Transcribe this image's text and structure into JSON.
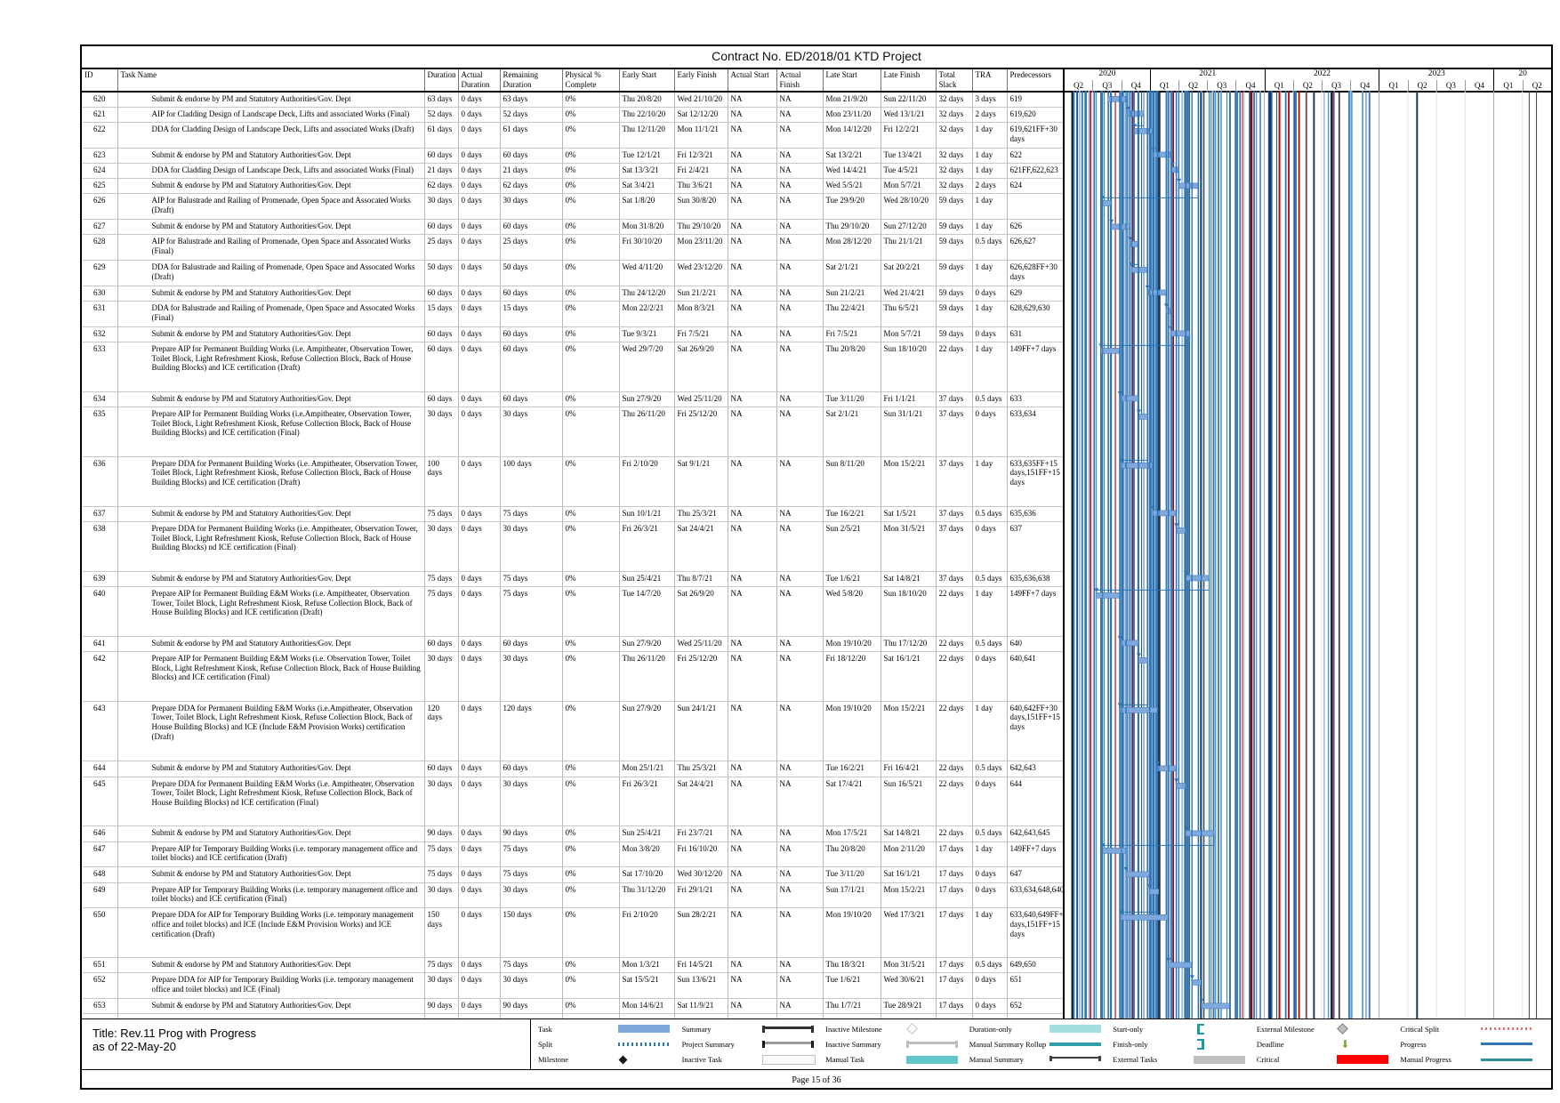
{
  "title": "Contract No. ED/2018/01 KTD Project",
  "footer": {
    "page_label": "Page 15 of 36"
  },
  "title_block": {
    "line1": "Title: Rev.11 Prog with Progress",
    "line2": "as of 22-May-20"
  },
  "columns": [
    "ID",
    "Task Name",
    "Duration",
    "Actual Duration",
    "Remaining Duration",
    "Physical % Complete",
    "Early Start",
    "Early Finish",
    "Actual Start",
    "Actual Finish",
    "Late Start",
    "Late Finish",
    "Total Slack",
    "TRA",
    "Predecessors"
  ],
  "timeline": {
    "start_quarter": "2020 Q2",
    "years": [
      {
        "label": "2020",
        "quarters": [
          "Q2",
          "Q3",
          "Q4"
        ]
      },
      {
        "label": "2021",
        "quarters": [
          "Q1",
          "Q2",
          "Q3",
          "Q4"
        ]
      },
      {
        "label": "2022",
        "quarters": [
          "Q1",
          "Q2",
          "Q3",
          "Q4"
        ]
      },
      {
        "label": "2023",
        "quarters": [
          "Q1",
          "Q2",
          "Q3",
          "Q4"
        ]
      },
      {
        "label": "20",
        "quarters": [
          "Q1",
          "Q2"
        ]
      }
    ]
  },
  "colors": {
    "task_bar": "#7FA8DC",
    "link_line": "#2E75B6",
    "critical": "#FF0000",
    "manual_task": "#63C6CB",
    "external": "#C0C0C0",
    "deadline_green": "#6FAE3E"
  },
  "tasks": [
    {
      "id": "620",
      "name": "Submit & endorse by PM and Statutory Authorities/Gov. Dept",
      "dur": "63 days",
      "adur": "0 days",
      "rdur": "63 days",
      "pct": "0%",
      "es": "Thu 20/8/20",
      "ef": "Wed 21/10/20",
      "as": "NA",
      "af": "NA",
      "ls": "Mon 21/9/20",
      "lf": "Sun 22/11/20",
      "slack": "32 days",
      "tra": "3 days",
      "pred": "619"
    },
    {
      "id": "621",
      "name": "AIP for Cladding Design of Landscape Deck, Lifts and associated Works (Final)",
      "dur": "52 days",
      "adur": "0 days",
      "rdur": "52 days",
      "pct": "0%",
      "es": "Thu 22/10/20",
      "ef": "Sat 12/12/20",
      "as": "NA",
      "af": "NA",
      "ls": "Mon 23/11/20",
      "lf": "Wed 13/1/21",
      "slack": "32 days",
      "tra": "2 days",
      "pred": "619,620"
    },
    {
      "id": "622",
      "name": "DDA for Cladding Design of Landscape Deck, Lifts and associated Works (Draft)",
      "dur": "61 days",
      "adur": "0 days",
      "rdur": "61 days",
      "pct": "0%",
      "es": "Thu 12/11/20",
      "ef": "Mon 11/1/21",
      "as": "NA",
      "af": "NA",
      "ls": "Mon 14/12/20",
      "lf": "Fri 12/2/21",
      "slack": "32 days",
      "tra": "1 day",
      "pred": "619,621FF+30 days"
    },
    {
      "id": "623",
      "name": "Submit & endorse by PM and Statutory Authorities/Gov. Dept",
      "dur": "60 days",
      "adur": "0 days",
      "rdur": "60 days",
      "pct": "0%",
      "es": "Tue 12/1/21",
      "ef": "Fri 12/3/21",
      "as": "NA",
      "af": "NA",
      "ls": "Sat 13/2/21",
      "lf": "Tue 13/4/21",
      "slack": "32 days",
      "tra": "1 day",
      "pred": "622"
    },
    {
      "id": "624",
      "name": "DDA for Cladding Design of Landscape Deck, Lifts and associated Works (Final)",
      "dur": "21 days",
      "adur": "0 days",
      "rdur": "21 days",
      "pct": "0%",
      "es": "Sat 13/3/21",
      "ef": "Fri 2/4/21",
      "as": "NA",
      "af": "NA",
      "ls": "Wed 14/4/21",
      "lf": "Tue 4/5/21",
      "slack": "32 days",
      "tra": "1 day",
      "pred": "621FF,622,623"
    },
    {
      "id": "625",
      "name": "Submit & endorse by PM and Statutory Authorities/Gov. Dept",
      "dur": "62 days",
      "adur": "0 days",
      "rdur": "62 days",
      "pct": "0%",
      "es": "Sat 3/4/21",
      "ef": "Thu 3/6/21",
      "as": "NA",
      "af": "NA",
      "ls": "Wed 5/5/21",
      "lf": "Mon 5/7/21",
      "slack": "32 days",
      "tra": "2 days",
      "pred": "624"
    },
    {
      "id": "626",
      "name": "AIP for Balustrade and Railing of Promenade, Open Space and Assocated Works (Draft)",
      "dur": "30 days",
      "adur": "0 days",
      "rdur": "30 days",
      "pct": "0%",
      "es": "Sat 1/8/20",
      "ef": "Sun 30/8/20",
      "as": "NA",
      "af": "NA",
      "ls": "Tue 29/9/20",
      "lf": "Wed 28/10/20",
      "slack": "59 days",
      "tra": "1 day",
      "pred": ""
    },
    {
      "id": "627",
      "name": "Submit & endorse by PM and Statutory Authorities/Gov. Dept",
      "dur": "60 days",
      "adur": "0 days",
      "rdur": "60 days",
      "pct": "0%",
      "es": "Mon 31/8/20",
      "ef": "Thu 29/10/20",
      "as": "NA",
      "af": "NA",
      "ls": "Thu 29/10/20",
      "lf": "Sun 27/12/20",
      "slack": "59 days",
      "tra": "1 day",
      "pred": "626"
    },
    {
      "id": "628",
      "name": "AIP for Balustrade and Railing of Promenade, Open Space and Assocated Works (Final)",
      "dur": "25 days",
      "adur": "0 days",
      "rdur": "25 days",
      "pct": "0%",
      "es": "Fri 30/10/20",
      "ef": "Mon 23/11/20",
      "as": "NA",
      "af": "NA",
      "ls": "Mon 28/12/20",
      "lf": "Thu 21/1/21",
      "slack": "59 days",
      "tra": "0.5 days",
      "pred": "626,627"
    },
    {
      "id": "629",
      "name": "DDA for Balustrade and Railing of Promenade, Open Space and Assocated Works (Draft)",
      "dur": "50 days",
      "adur": "0 days",
      "rdur": "50 days",
      "pct": "0%",
      "es": "Wed 4/11/20",
      "ef": "Wed 23/12/20",
      "as": "NA",
      "af": "NA",
      "ls": "Sat 2/1/21",
      "lf": "Sat 20/2/21",
      "slack": "59 days",
      "tra": "1 day",
      "pred": "626,628FF+30 days"
    },
    {
      "id": "630",
      "name": "Submit & endorse by PM and Statutory Authorities/Gov. Dept",
      "dur": "60 days",
      "adur": "0 days",
      "rdur": "60 days",
      "pct": "0%",
      "es": "Thu 24/12/20",
      "ef": "Sun 21/2/21",
      "as": "NA",
      "af": "NA",
      "ls": "Sun 21/2/21",
      "lf": "Wed 21/4/21",
      "slack": "59 days",
      "tra": "0 days",
      "pred": "629"
    },
    {
      "id": "631",
      "name": "DDA for Balustrade and Railing of Promenade, Open Space and Assocated Works (Final)",
      "dur": "15 days",
      "adur": "0 days",
      "rdur": "15 days",
      "pct": "0%",
      "es": "Mon 22/2/21",
      "ef": "Mon 8/3/21",
      "as": "NA",
      "af": "NA",
      "ls": "Thu 22/4/21",
      "lf": "Thu 6/5/21",
      "slack": "59 days",
      "tra": "1 day",
      "pred": "628,629,630"
    },
    {
      "id": "632",
      "name": "Submit & endorse by PM and Statutory Authorities/Gov. Dept",
      "dur": "60 days",
      "adur": "0 days",
      "rdur": "60 days",
      "pct": "0%",
      "es": "Tue 9/3/21",
      "ef": "Fri 7/5/21",
      "as": "NA",
      "af": "NA",
      "ls": "Fri 7/5/21",
      "lf": "Mon 5/7/21",
      "slack": "59 days",
      "tra": "0 days",
      "pred": "631"
    },
    {
      "id": "633",
      "name": "Prepare AIP for Permanent Building Works (i.e. Ampitheater, Observation Tower, Toilet Block, Light Refreshment Kiosk,  Refuse Collection Block, Back of House Building Blocks) and ICE certification (Draft)",
      "dur": "60 days",
      "adur": "0 days",
      "rdur": "60 days",
      "pct": "0%",
      "es": "Wed 29/7/20",
      "ef": "Sat 26/9/20",
      "as": "NA",
      "af": "NA",
      "ls": "Thu 20/8/20",
      "lf": "Sun 18/10/20",
      "slack": "22 days",
      "tra": "1 day",
      "pred": "149FF+7 days"
    },
    {
      "id": "634",
      "name": "Submit & endorse by PM and Statutory Authorities/Gov. Dept",
      "dur": "60 days",
      "adur": "0 days",
      "rdur": "60 days",
      "pct": "0%",
      "es": "Sun 27/9/20",
      "ef": "Wed 25/11/20",
      "as": "NA",
      "af": "NA",
      "ls": "Tue 3/11/20",
      "lf": "Fri 1/1/21",
      "slack": "37 days",
      "tra": "0.5 days",
      "pred": "633"
    },
    {
      "id": "635",
      "name": "Prepare AIP for  Permanent Building Works (i.e.Ampitheater, Observation Tower, Toilet Block, Light Refreshment Kiosk,  Refuse Collection Block, Back of House Building Blocks)  and ICE certification (Final)",
      "dur": "30 days",
      "adur": "0 days",
      "rdur": "30 days",
      "pct": "0%",
      "es": "Thu 26/11/20",
      "ef": "Fri 25/12/20",
      "as": "NA",
      "af": "NA",
      "ls": "Sat 2/1/21",
      "lf": "Sun 31/1/21",
      "slack": "37 days",
      "tra": "0 days",
      "pred": "633,634"
    },
    {
      "id": "636",
      "name": "Prepare DDA for  Permanent Building Works (i.e. Ampitheater, Observation Tower, Toilet Block, Light Refreshment Kiosk,  Refuse Collection Block, Back of House Building Blocks) and ICE certification (Draft)",
      "dur": "100 days",
      "adur": "0 days",
      "rdur": "100 days",
      "pct": "0%",
      "es": "Fri 2/10/20",
      "ef": "Sat 9/1/21",
      "as": "NA",
      "af": "NA",
      "ls": "Sun 8/11/20",
      "lf": "Mon 15/2/21",
      "slack": "37 days",
      "tra": "1 day",
      "pred": "633,635FF+15 days,151FF+15 days"
    },
    {
      "id": "637",
      "name": "Submit & endorse by PM and Statutory Authorities/Gov. Dept",
      "dur": "75 days",
      "adur": "0 days",
      "rdur": "75 days",
      "pct": "0%",
      "es": "Sun 10/1/21",
      "ef": "Thu 25/3/21",
      "as": "NA",
      "af": "NA",
      "ls": "Tue 16/2/21",
      "lf": "Sat 1/5/21",
      "slack": "37 days",
      "tra": "0.5 days",
      "pred": "635,636"
    },
    {
      "id": "638",
      "name": "Prepare DDA for  Permanent Building Works (i.e. Ampitheater, Observation Tower, Toilet Block, Light Refreshment Kiosk,  Refuse Collection Block, Back of House Building Blocks) nd ICE certification (Final)",
      "dur": "30 days",
      "adur": "0 days",
      "rdur": "30 days",
      "pct": "0%",
      "es": "Fri 26/3/21",
      "ef": "Sat 24/4/21",
      "as": "NA",
      "af": "NA",
      "ls": "Sun 2/5/21",
      "lf": "Mon 31/5/21",
      "slack": "37 days",
      "tra": "0 days",
      "pred": "637"
    },
    {
      "id": "639",
      "name": "Submit & endorse by PM and Statutory Authorities/Gov. Dept",
      "dur": "75 days",
      "adur": "0 days",
      "rdur": "75 days",
      "pct": "0%",
      "es": "Sun 25/4/21",
      "ef": "Thu 8/7/21",
      "as": "NA",
      "af": "NA",
      "ls": "Tue 1/6/21",
      "lf": "Sat 14/8/21",
      "slack": "37 days",
      "tra": "0.5 days",
      "pred": "635,636,638"
    },
    {
      "id": "640",
      "name": "Prepare AIP for Permanent Building E&M Works (i.e. Ampitheater, Observation Tower, Toilet Block, Light Refreshment Kiosk,  Refuse Collection Block, Back of House Building Blocks) and ICE certification (Draft)",
      "dur": "75 days",
      "adur": "0 days",
      "rdur": "75 days",
      "pct": "0%",
      "es": "Tue 14/7/20",
      "ef": "Sat 26/9/20",
      "as": "NA",
      "af": "NA",
      "ls": "Wed 5/8/20",
      "lf": "Sun 18/10/20",
      "slack": "22 days",
      "tra": "1 day",
      "pred": "149FF+7 days"
    },
    {
      "id": "641",
      "name": "Submit & endorse by PM and Statutory Authorities/Gov. Dept",
      "dur": "60 days",
      "adur": "0 days",
      "rdur": "60 days",
      "pct": "0%",
      "es": "Sun 27/9/20",
      "ef": "Wed 25/11/20",
      "as": "NA",
      "af": "NA",
      "ls": "Mon 19/10/20",
      "lf": "Thu 17/12/20",
      "slack": "22 days",
      "tra": "0.5 days",
      "pred": "640"
    },
    {
      "id": "642",
      "name": "Prepare AIP for  Permanent Building E&M Works (i.e. Observation Tower, Toilet Block, Light Refreshment Kiosk,  Refuse Collection Block, Back of House Building Blocks) and ICE certification (Final)",
      "dur": "30 days",
      "adur": "0 days",
      "rdur": "30 days",
      "pct": "0%",
      "es": "Thu 26/11/20",
      "ef": "Fri 25/12/20",
      "as": "NA",
      "af": "NA",
      "ls": "Fri 18/12/20",
      "lf": "Sat 16/1/21",
      "slack": "22 days",
      "tra": "0 days",
      "pred": "640,641"
    },
    {
      "id": "643",
      "name": "Prepare DDA for  Permanent Building E&M Works (i.e.Ampitheater, Observation Tower, Toilet Block, Light Refreshment Kiosk,  Refuse Collection Block, Back of House Building Blocks) and ICE  (Include E&M Provision Works) certification (Draft)",
      "dur": "120 days",
      "adur": "0 days",
      "rdur": "120 days",
      "pct": "0%",
      "es": "Sun 27/9/20",
      "ef": "Sun 24/1/21",
      "as": "NA",
      "af": "NA",
      "ls": "Mon 19/10/20",
      "lf": "Mon 15/2/21",
      "slack": "22 days",
      "tra": "1 day",
      "pred": "640,642FF+30 days,151FF+15 days"
    },
    {
      "id": "644",
      "name": "Submit & endorse by PM and Statutory Authorities/Gov. Dept",
      "dur": "60 days",
      "adur": "0 days",
      "rdur": "60 days",
      "pct": "0%",
      "es": "Mon 25/1/21",
      "ef": "Thu 25/3/21",
      "as": "NA",
      "af": "NA",
      "ls": "Tue 16/2/21",
      "lf": "Fri 16/4/21",
      "slack": "22 days",
      "tra": "0.5 days",
      "pred": "642,643"
    },
    {
      "id": "645",
      "name": "Prepare DDA for  Permanent Building E&M Works (i.e. Ampitheater, Observation Tower, Toilet Block, Light Refreshment Kiosk,  Refuse Collection Block, Back of House Building Blocks) nd ICE certification (Final)",
      "dur": "30 days",
      "adur": "0 days",
      "rdur": "30 days",
      "pct": "0%",
      "es": "Fri 26/3/21",
      "ef": "Sat 24/4/21",
      "as": "NA",
      "af": "NA",
      "ls": "Sat 17/4/21",
      "lf": "Sun 16/5/21",
      "slack": "22 days",
      "tra": "0 days",
      "pred": "644"
    },
    {
      "id": "646",
      "name": "Submit & endorse by PM and Statutory Authorities/Gov. Dept",
      "dur": "90 days",
      "adur": "0 days",
      "rdur": "90 days",
      "pct": "0%",
      "es": "Sun 25/4/21",
      "ef": "Fri 23/7/21",
      "as": "NA",
      "af": "NA",
      "ls": "Mon 17/5/21",
      "lf": "Sat 14/8/21",
      "slack": "22 days",
      "tra": "0.5 days",
      "pred": "642,643,645"
    },
    {
      "id": "647",
      "name": "Prepare AIP for Temporary Building Works (i.e. temporary management office and toilet blocks) and ICE certification (Draft)",
      "dur": "75 days",
      "adur": "0 days",
      "rdur": "75 days",
      "pct": "0%",
      "es": "Mon 3/8/20",
      "ef": "Fri 16/10/20",
      "as": "NA",
      "af": "NA",
      "ls": "Thu 20/8/20",
      "lf": "Mon 2/11/20",
      "slack": "17 days",
      "tra": "1 day",
      "pred": "149FF+7 days"
    },
    {
      "id": "648",
      "name": "Submit & endorse by PM and Statutory Authorities/Gov. Dept",
      "dur": "75 days",
      "adur": "0 days",
      "rdur": "75 days",
      "pct": "0%",
      "es": "Sat 17/10/20",
      "ef": "Wed 30/12/20",
      "as": "NA",
      "af": "NA",
      "ls": "Tue 3/11/20",
      "lf": "Sat 16/1/21",
      "slack": "17 days",
      "tra": "0 days",
      "pred": "647"
    },
    {
      "id": "649",
      "name": "Prepare AIP for Temporary Building Works (i.e. temporary management office and toilet blocks) and ICE certification (Final)",
      "dur": "30 days",
      "adur": "0 days",
      "rdur": "30 days",
      "pct": "0%",
      "es": "Thu 31/12/20",
      "ef": "Fri 29/1/21",
      "as": "NA",
      "af": "NA",
      "ls": "Sun 17/1/21",
      "lf": "Mon 15/2/21",
      "slack": "17 days",
      "tra": "0 days",
      "pred": "633,634,648,640"
    },
    {
      "id": "650",
      "name": "Prepare DDA for AIP for Temporary Building Works (i.e. temporary management office and toilet blocks) and ICE (Include E&M Provision Works) and ICE certification (Draft)",
      "dur": "150 days",
      "adur": "0 days",
      "rdur": "150 days",
      "pct": "0%",
      "es": "Fri 2/10/20",
      "ef": "Sun 28/2/21",
      "as": "NA",
      "af": "NA",
      "ls": "Mon 19/10/20",
      "lf": "Wed 17/3/21",
      "slack": "17 days",
      "tra": "1 day",
      "pred": "633,640,649FF+ days,151FF+15 days"
    },
    {
      "id": "651",
      "name": "Submit & endorse by PM and Statutory Authorities/Gov. Dept",
      "dur": "75 days",
      "adur": "0 days",
      "rdur": "75 days",
      "pct": "0%",
      "es": "Mon 1/3/21",
      "ef": "Fri 14/5/21",
      "as": "NA",
      "af": "NA",
      "ls": "Thu 18/3/21",
      "lf": "Mon 31/5/21",
      "slack": "17 days",
      "tra": "0.5 days",
      "pred": "649,650"
    },
    {
      "id": "652",
      "name": "Prepare DDA for  AIP for Temporary Building Works (i.e. temporary management office and toilet blocks) and ICE (Final)",
      "dur": "30 days",
      "adur": "0 days",
      "rdur": "30 days",
      "pct": "0%",
      "es": "Sat 15/5/21",
      "ef": "Sun 13/6/21",
      "as": "NA",
      "af": "NA",
      "ls": "Tue 1/6/21",
      "lf": "Wed 30/6/21",
      "slack": "17 days",
      "tra": "0 days",
      "pred": "651"
    },
    {
      "id": "653",
      "name": "Submit & endorse by PM and Statutory Authorities/Gov. Dept",
      "dur": "90 days",
      "adur": "0 days",
      "rdur": "90 days",
      "pct": "0%",
      "es": "Mon 14/6/21",
      "ef": "Sat 11/9/21",
      "as": "NA",
      "af": "NA",
      "ls": "Thu 1/7/21",
      "lf": "Tue 28/9/21",
      "slack": "17 days",
      "tra": "0 days",
      "pred": "652"
    }
  ],
  "legend": {
    "items": [
      {
        "label": "Task",
        "swatch": "task-bar"
      },
      {
        "label": "Split",
        "swatch": "split-dots"
      },
      {
        "label": "Milestone",
        "swatch": "milestone-diamond"
      },
      {
        "label": "Summary",
        "swatch": "summary-bar"
      },
      {
        "label": "Project Summary",
        "swatch": "project-summary-bar"
      },
      {
        "label": "Inactive Task",
        "swatch": "inactive-task-box"
      },
      {
        "label": "Inactive Milestone",
        "swatch": "inactive-milestone-diamond"
      },
      {
        "label": "Inactive Summary",
        "swatch": "inactive-summary-bar"
      },
      {
        "label": "Manual Task",
        "swatch": "manual-task-bar"
      },
      {
        "label": "Duration-only",
        "swatch": "duration-only-bar"
      },
      {
        "label": "Manual Summary Rollup",
        "swatch": "manual-summary-rollup-bar"
      },
      {
        "label": "Manual Summary",
        "swatch": "manual-summary-bar"
      },
      {
        "label": "Start-only",
        "swatch": "start-only-bracket"
      },
      {
        "label": "Finish-only",
        "swatch": "finish-only-bracket"
      },
      {
        "label": "External Tasks",
        "swatch": "external-tasks-bar"
      },
      {
        "label": "External Milestone",
        "swatch": "external-milestone-diamond"
      },
      {
        "label": "Deadline",
        "swatch": "deadline-arrow"
      },
      {
        "label": "Critical",
        "swatch": "critical-bar"
      },
      {
        "label": "Critical Split",
        "swatch": "critical-split-dots"
      },
      {
        "label": "Progress",
        "swatch": "progress-line"
      },
      {
        "label": "Manual Progress",
        "swatch": "manual-progress-line"
      }
    ]
  }
}
